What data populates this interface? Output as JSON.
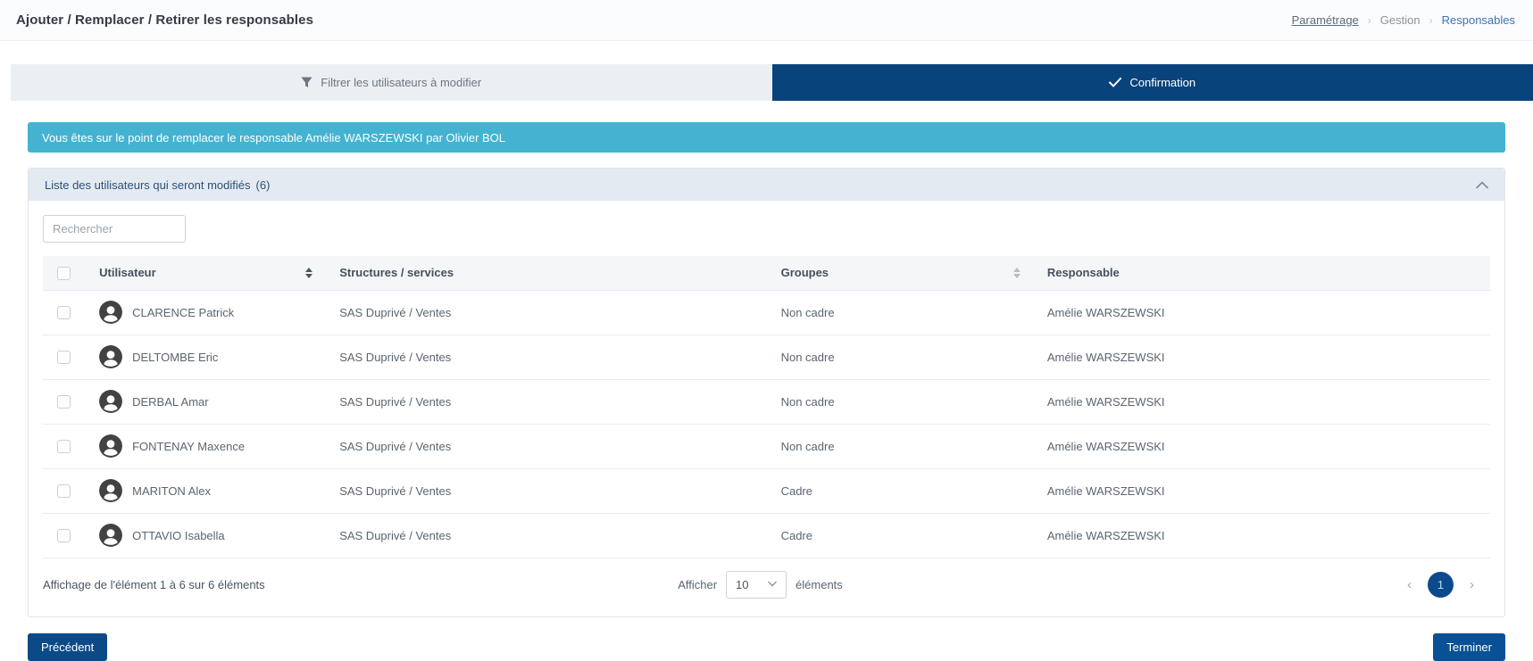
{
  "header": {
    "title": "Ajouter / Remplacer / Retirer les responsables",
    "breadcrumb": [
      {
        "label": "Paramétrage"
      },
      {
        "label": "Gestion"
      },
      {
        "label": "Responsables"
      }
    ]
  },
  "tabs": [
    {
      "label": "Filtrer les utilisateurs à modifier",
      "icon": "filter-icon",
      "active": false
    },
    {
      "label": "Confirmation",
      "icon": "check-icon",
      "active": true
    }
  ],
  "banner": {
    "text": "Vous êtes sur le point de remplacer le responsable Amélie WARSZEWSKI par Olivier BOL"
  },
  "panel": {
    "title": "Liste des utilisateurs qui seront modifiés",
    "count": "(6)",
    "search_placeholder": "Rechercher"
  },
  "table": {
    "headers": [
      {
        "label": "Utilisateur",
        "sortable": true
      },
      {
        "label": "Structures / services",
        "sortable": false
      },
      {
        "label": "Groupes",
        "sortable": true
      },
      {
        "label": "Responsable",
        "sortable": false
      }
    ],
    "rows": [
      {
        "utilisateur": "CLARENCE Patrick",
        "structures": "SAS Duprivé / Ventes",
        "groupes": "Non cadre",
        "responsable": "Amélie WARSZEWSKI"
      },
      {
        "utilisateur": "DELTOMBE Eric",
        "structures": "SAS Duprivé / Ventes",
        "groupes": "Non cadre",
        "responsable": "Amélie WARSZEWSKI"
      },
      {
        "utilisateur": "DERBAL Amar",
        "structures": "SAS Duprivé / Ventes",
        "groupes": "Non cadre",
        "responsable": "Amélie WARSZEWSKI"
      },
      {
        "utilisateur": "FONTENAY Maxence",
        "structures": "SAS Duprivé / Ventes",
        "groupes": "Non cadre",
        "responsable": "Amélie WARSZEWSKI"
      },
      {
        "utilisateur": "MARITON Alex",
        "structures": "SAS Duprivé / Ventes",
        "groupes": "Cadre",
        "responsable": "Amélie WARSZEWSKI"
      },
      {
        "utilisateur": "OTTAVIO Isabella",
        "structures": "SAS Duprivé / Ventes",
        "groupes": "Cadre",
        "responsable": "Amélie WARSZEWSKI"
      }
    ]
  },
  "footer": {
    "info": "Affichage de l'élément 1 à 6 sur 6 éléments",
    "show_label": "Afficher",
    "page_size": "10",
    "items_label": "éléments",
    "page": "1"
  },
  "buttons": {
    "previous": "Précédent",
    "finish": "Terminer"
  },
  "colors": {
    "active_tab_navy": "#09437c",
    "banner_teal": "#44b3d1",
    "panel_header_blue": "#e4eaf2",
    "pagination_navy": "#0c4a8e",
    "button_navy": "#0b4a87",
    "breadcrumb_link_blue": "#3f73b4"
  }
}
